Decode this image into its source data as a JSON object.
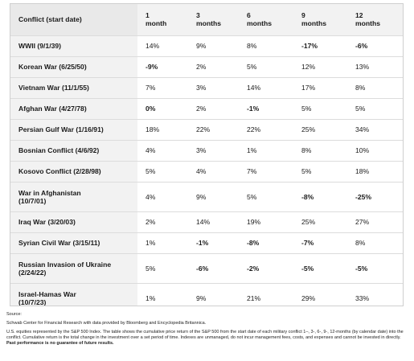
{
  "table": {
    "headers": [
      "Conflict (start date)",
      "1\nmonth",
      "3\nmonths",
      "6\nmonths",
      "9\nmonths",
      "12\nmonths"
    ],
    "header_lines": [
      [
        "Conflict (start date)",
        ""
      ],
      [
        "1",
        "month"
      ],
      [
        "3",
        "months"
      ],
      [
        "6",
        "months"
      ],
      [
        "9",
        "months"
      ],
      [
        "12",
        "months"
      ]
    ],
    "rows": [
      {
        "conflict": "WWII (9/1/39)",
        "values": [
          "14%",
          "9%",
          "8%",
          "-17%",
          "-6%"
        ]
      },
      {
        "conflict": "Korean War (6/25/50)",
        "values": [
          "-9%",
          "2%",
          "5%",
          "12%",
          "13%"
        ]
      },
      {
        "conflict": "Vietnam War (11/1/55)",
        "values": [
          "7%",
          "3%",
          "14%",
          "17%",
          "8%"
        ]
      },
      {
        "conflict": "Afghan War (4/27/78)",
        "values": [
          "0%",
          "2%",
          "-1%",
          "5%",
          "5%"
        ]
      },
      {
        "conflict": "Persian Gulf War (1/16/91)",
        "values": [
          "18%",
          "22%",
          "22%",
          "25%",
          "34%"
        ]
      },
      {
        "conflict": "Bosnian Conflict (4/6/92)",
        "values": [
          "4%",
          "3%",
          "1%",
          "8%",
          "10%"
        ]
      },
      {
        "conflict": "Kosovo Conflict (2/28/98)",
        "values": [
          "5%",
          "4%",
          "7%",
          "5%",
          "18%"
        ]
      },
      {
        "conflict": "War in Afghanistan (10/7/01)",
        "conflict_lines": [
          "War in Afghanistan",
          "(10/7/01)"
        ],
        "values": [
          "4%",
          "9%",
          "5%",
          "-8%",
          "-25%"
        ]
      },
      {
        "conflict": "Iraq War (3/20/03)",
        "values": [
          "2%",
          "14%",
          "19%",
          "25%",
          "27%"
        ]
      },
      {
        "conflict": "Syrian Civil War (3/15/11)",
        "values": [
          "1%",
          "-1%",
          "-8%",
          "-7%",
          "8%"
        ]
      },
      {
        "conflict": "Russian Invasion of Ukraine (2/24/22)",
        "conflict_lines": [
          "Russian Invasion of Ukraine",
          "(2/24/22)"
        ],
        "values": [
          "5%",
          "-6%",
          "-2%",
          "-5%",
          "-5%"
        ]
      },
      {
        "conflict": "Israel-Hamas War (10/7/23)",
        "conflict_lines": [
          "Israel-Hamas War",
          "(10/7/23)"
        ],
        "values": [
          "1%",
          "9%",
          "21%",
          "29%",
          "33%"
        ]
      }
    ]
  },
  "footer": {
    "source_label": "Source:",
    "source_text": "Schwab Center for Financial Research with data provided by Bloomberg and Encyclopedia Britannica.",
    "note_text": "U.S. equities represented by the S&P 500 Index. The table shows the cumulative price return of the S&P 500 from the start date of each military conflict 1–, 3-, 6-, 9-, 12-months (by calendar date) into the conflict. Cumulative return is the total change in the investment over a set period of time. Indexes are unmanaged, do not incur management fees, costs, and expenses and cannot be invested in directly.",
    "note_bold": "Past performance is no guarantee of future results."
  },
  "colors": {
    "header_bg": "#f2f2f2",
    "first_col_bg": "#f2f2f2",
    "border": "#dcdcdc"
  }
}
